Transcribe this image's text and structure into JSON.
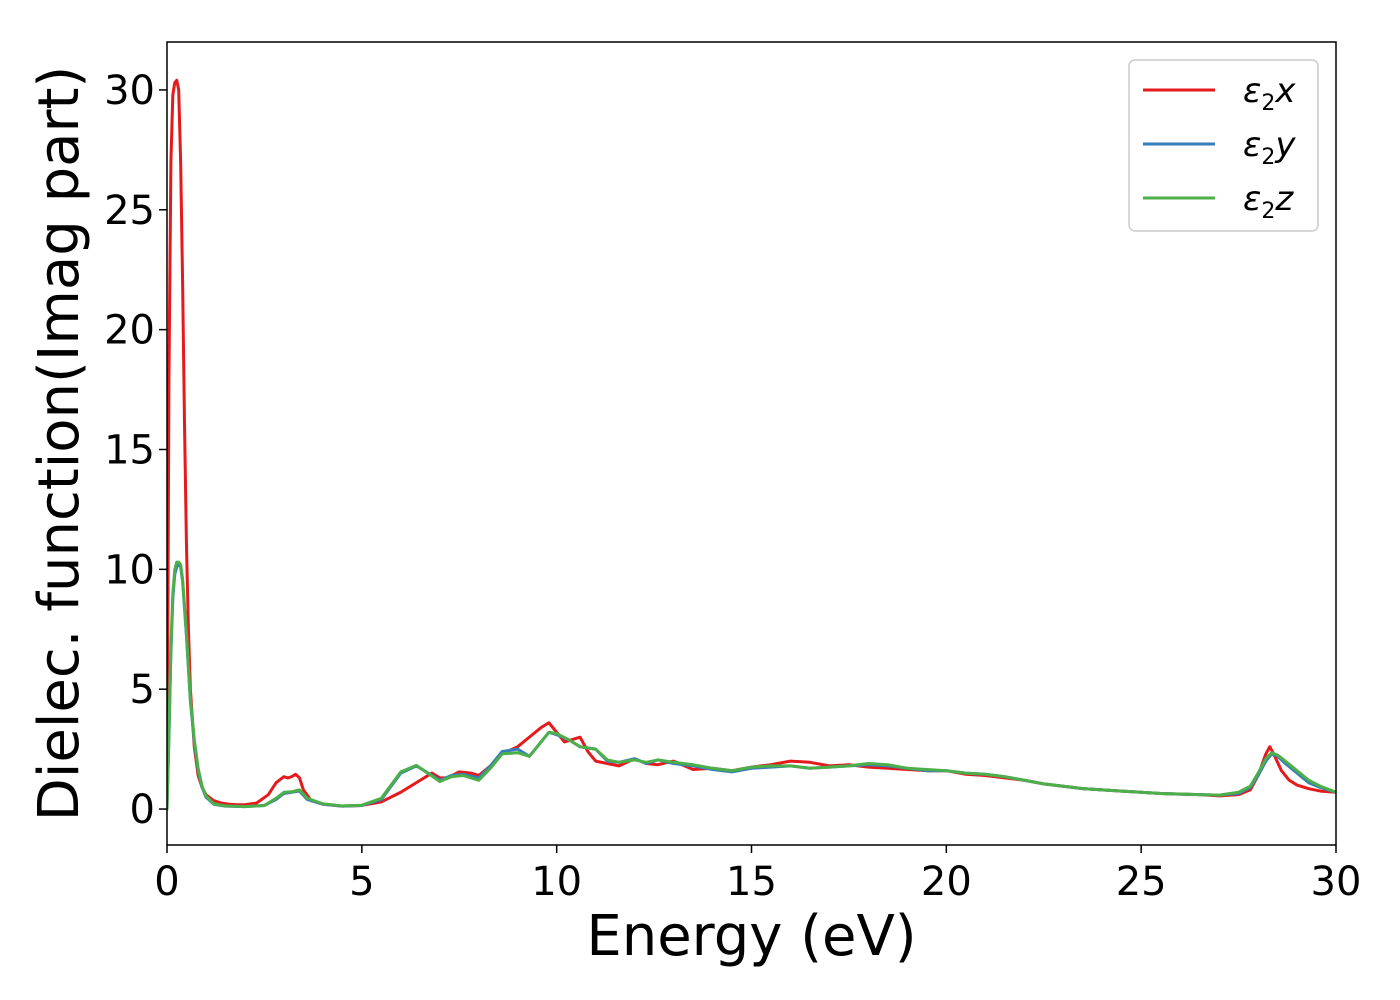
{
  "chart_data": {
    "type": "line",
    "title": "",
    "xlabel": "Energy (eV)",
    "ylabel": "Dielec. function(Imag part)",
    "xlim": [
      0,
      30
    ],
    "ylim": [
      -1.5,
      32
    ],
    "xticks": [
      0,
      5,
      10,
      15,
      20,
      25,
      30
    ],
    "yticks": [
      0,
      5,
      10,
      15,
      20,
      25,
      30
    ],
    "grid": false,
    "legend_position": "top-right",
    "series": [
      {
        "name": "ε2x",
        "legend": {
          "base": "ε",
          "sub": "2",
          "tail": "x"
        },
        "color": "#e41a1c",
        "x": [
          0,
          0.05,
          0.1,
          0.15,
          0.2,
          0.25,
          0.3,
          0.35,
          0.4,
          0.45,
          0.5,
          0.55,
          0.6,
          0.7,
          0.8,
          0.9,
          1.0,
          1.2,
          1.4,
          1.6,
          1.8,
          2.0,
          2.3,
          2.6,
          2.8,
          3.0,
          3.1,
          3.2,
          3.3,
          3.4,
          3.5,
          3.7,
          4.0,
          4.5,
          5.0,
          5.5,
          6.0,
          6.5,
          6.8,
          7.0,
          7.2,
          7.5,
          7.8,
          8.0,
          8.3,
          8.6,
          9.0,
          9.3,
          9.6,
          9.8,
          10.0,
          10.2,
          10.4,
          10.6,
          10.8,
          11.0,
          11.3,
          11.6,
          12.0,
          12.3,
          12.6,
          13.0,
          13.5,
          14.0,
          14.5,
          15.0,
          15.5,
          16.0,
          16.5,
          17.0,
          17.5,
          18.0,
          18.5,
          19.0,
          19.5,
          20.0,
          20.5,
          21.0,
          21.5,
          22.0,
          22.5,
          23.0,
          23.5,
          24.0,
          24.5,
          25.0,
          25.5,
          26.0,
          26.5,
          27.0,
          27.5,
          27.8,
          28.0,
          28.2,
          28.3,
          28.4,
          28.6,
          28.8,
          29.0,
          29.3,
          29.6,
          30.0
        ],
        "values": [
          0,
          18,
          27,
          29.8,
          30.3,
          30.4,
          30,
          27,
          22,
          16,
          11,
          7.5,
          5,
          2.6,
          1.4,
          0.9,
          0.6,
          0.35,
          0.25,
          0.2,
          0.18,
          0.18,
          0.25,
          0.6,
          1.1,
          1.35,
          1.3,
          1.35,
          1.45,
          1.3,
          0.8,
          0.35,
          0.2,
          0.12,
          0.15,
          0.3,
          0.7,
          1.2,
          1.5,
          1.3,
          1.3,
          1.55,
          1.5,
          1.4,
          1.8,
          2.3,
          2.6,
          3.0,
          3.4,
          3.6,
          3.2,
          2.8,
          2.9,
          3.0,
          2.4,
          2.0,
          1.9,
          1.8,
          2.1,
          1.9,
          1.85,
          2.0,
          1.65,
          1.7,
          1.6,
          1.75,
          1.85,
          2.0,
          1.95,
          1.8,
          1.85,
          1.75,
          1.7,
          1.65,
          1.6,
          1.6,
          1.45,
          1.4,
          1.3,
          1.2,
          1.05,
          0.95,
          0.85,
          0.8,
          0.75,
          0.7,
          0.65,
          0.62,
          0.6,
          0.55,
          0.6,
          0.8,
          1.4,
          2.3,
          2.6,
          2.3,
          1.6,
          1.2,
          1.0,
          0.85,
          0.75,
          0.7
        ]
      },
      {
        "name": "ε2y",
        "legend": {
          "base": "ε",
          "sub": "2",
          "tail": "y"
        },
        "color": "#377eb8",
        "x": [
          0,
          0.05,
          0.1,
          0.15,
          0.2,
          0.25,
          0.3,
          0.35,
          0.4,
          0.5,
          0.6,
          0.7,
          0.8,
          0.9,
          1.0,
          1.2,
          1.5,
          2.0,
          2.5,
          2.8,
          3.0,
          3.2,
          3.4,
          3.6,
          4.0,
          4.5,
          5.0,
          5.5,
          6.0,
          6.4,
          6.6,
          7.0,
          7.3,
          7.6,
          8.0,
          8.3,
          8.6,
          9.0,
          9.3,
          9.6,
          9.8,
          10.0,
          10.3,
          10.6,
          11.0,
          11.3,
          11.6,
          12.0,
          12.3,
          12.6,
          13.0,
          13.5,
          14.0,
          14.5,
          15.0,
          15.5,
          16.0,
          16.5,
          17.0,
          17.5,
          18.0,
          18.5,
          19.0,
          19.5,
          20.0,
          20.5,
          21.0,
          21.5,
          22.0,
          22.5,
          23.0,
          23.5,
          24.0,
          24.5,
          25.0,
          25.5,
          26.0,
          26.5,
          27.0,
          27.5,
          27.8,
          28.0,
          28.2,
          28.35,
          28.5,
          28.7,
          29.0,
          29.3,
          29.6,
          30.0
        ],
        "values": [
          0,
          3,
          6.5,
          8.8,
          9.8,
          10.1,
          10.2,
          10.1,
          9.5,
          7.2,
          4.5,
          2.8,
          1.6,
          0.9,
          0.5,
          0.2,
          0.12,
          0.1,
          0.15,
          0.4,
          0.65,
          0.7,
          0.75,
          0.4,
          0.2,
          0.12,
          0.15,
          0.4,
          1.5,
          1.8,
          1.6,
          1.2,
          1.4,
          1.45,
          1.3,
          1.8,
          2.4,
          2.5,
          2.2,
          2.8,
          3.2,
          3.1,
          2.9,
          2.6,
          2.5,
          2.0,
          1.95,
          2.1,
          1.9,
          2.05,
          1.9,
          1.8,
          1.65,
          1.55,
          1.7,
          1.75,
          1.8,
          1.7,
          1.75,
          1.8,
          1.85,
          1.8,
          1.7,
          1.6,
          1.6,
          1.5,
          1.45,
          1.35,
          1.2,
          1.05,
          0.95,
          0.85,
          0.8,
          0.75,
          0.7,
          0.65,
          0.62,
          0.6,
          0.58,
          0.65,
          0.9,
          1.4,
          2.0,
          2.3,
          2.2,
          1.9,
          1.5,
          1.1,
          0.9,
          0.7
        ]
      },
      {
        "name": "ε2z",
        "legend": {
          "base": "ε",
          "sub": "2",
          "tail": "z"
        },
        "color": "#4daf4a",
        "x": [
          0,
          0.05,
          0.1,
          0.15,
          0.2,
          0.25,
          0.3,
          0.35,
          0.4,
          0.5,
          0.6,
          0.7,
          0.8,
          0.9,
          1.0,
          1.2,
          1.5,
          2.0,
          2.5,
          2.8,
          3.0,
          3.2,
          3.4,
          3.6,
          4.0,
          4.5,
          5.0,
          5.5,
          6.0,
          6.4,
          6.6,
          7.0,
          7.3,
          7.6,
          8.0,
          8.3,
          8.6,
          9.0,
          9.3,
          9.6,
          9.8,
          10.0,
          10.3,
          10.6,
          11.0,
          11.3,
          11.6,
          12.0,
          12.3,
          12.6,
          13.0,
          13.5,
          14.0,
          14.5,
          15.0,
          15.5,
          16.0,
          16.5,
          17.0,
          17.5,
          18.0,
          18.5,
          19.0,
          19.5,
          20.0,
          20.5,
          21.0,
          21.5,
          22.0,
          22.5,
          23.0,
          23.5,
          24.0,
          24.5,
          25.0,
          25.5,
          26.0,
          26.5,
          27.0,
          27.5,
          27.8,
          28.0,
          28.2,
          28.35,
          28.5,
          28.7,
          29.0,
          29.3,
          29.6,
          30.0
        ],
        "values": [
          0,
          3.2,
          6.8,
          9.0,
          10.0,
          10.3,
          10.3,
          10.2,
          9.6,
          7.3,
          4.6,
          2.9,
          1.7,
          0.95,
          0.55,
          0.22,
          0.13,
          0.1,
          0.15,
          0.45,
          0.7,
          0.72,
          0.8,
          0.45,
          0.22,
          0.13,
          0.16,
          0.45,
          1.55,
          1.82,
          1.6,
          1.15,
          1.35,
          1.4,
          1.2,
          1.7,
          2.3,
          2.35,
          2.2,
          2.8,
          3.2,
          3.15,
          2.9,
          2.6,
          2.5,
          2.05,
          1.95,
          2.05,
          1.95,
          2.05,
          1.95,
          1.85,
          1.7,
          1.6,
          1.75,
          1.8,
          1.8,
          1.7,
          1.75,
          1.8,
          1.9,
          1.85,
          1.7,
          1.65,
          1.6,
          1.5,
          1.45,
          1.35,
          1.2,
          1.05,
          0.95,
          0.85,
          0.8,
          0.75,
          0.7,
          0.65,
          0.63,
          0.6,
          0.58,
          0.7,
          0.95,
          1.5,
          2.1,
          2.35,
          2.25,
          2.0,
          1.6,
          1.2,
          0.95,
          0.7
        ]
      }
    ]
  }
}
